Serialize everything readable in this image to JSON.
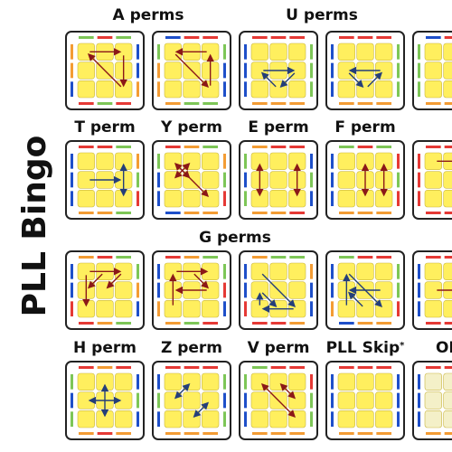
{
  "title": "PLL Bingo",
  "colors": {
    "sticker": "#FFEF5E",
    "sticker_border": "#C9B640",
    "frame": "#222222",
    "red": "#E53935",
    "orange": "#F39C34",
    "green": "#7DC657",
    "blue": "#1E4FC9",
    "arrow_red": "#8B1818",
    "arrow_blue": "#243E7A"
  },
  "rows": [
    {
      "groups": [
        {
          "label": "A perms",
          "span": [
            0,
            1
          ]
        },
        {
          "label": "U perms",
          "span": [
            2,
            3
          ]
        }
      ],
      "cells": [
        {
          "name": "aa",
          "color": "arrow_red",
          "sides": {
            "top": [
              "green",
              "red",
              "green"
            ],
            "left": [
              "orange",
              "orange",
              "blue"
            ],
            "right": [
              "blue",
              "blue",
              "orange"
            ],
            "bottom": [
              "red",
              "green",
              "red"
            ]
          },
          "arrows": [
            [
              0,
              0,
              2,
              0
            ],
            [
              2,
              0,
              2,
              2
            ],
            [
              2,
              2,
              0,
              0
            ]
          ]
        },
        {
          "name": "ab",
          "color": "arrow_red",
          "sides": {
            "top": [
              "blue",
              "red",
              "red"
            ],
            "left": [
              "green",
              "orange",
              "orange"
            ],
            "right": [
              "green",
              "blue",
              "blue"
            ],
            "bottom": [
              "orange",
              "green",
              "green"
            ]
          },
          "arrows": [
            [
              2,
              0,
              0,
              0
            ],
            [
              0,
              0,
              2,
              2
            ],
            [
              2,
              2,
              2,
              0
            ]
          ]
        },
        {
          "name": "ua",
          "color": "arrow_blue",
          "sides": {
            "top": [
              "red",
              "red",
              "red"
            ],
            "left": [
              "blue",
              "blue",
              "blue"
            ],
            "right": [
              "green",
              "green",
              "green"
            ],
            "bottom": [
              "orange",
              "orange",
              "orange"
            ]
          },
          "arrows": [
            [
              0,
              1,
              2,
              1
            ],
            [
              2,
              1,
              1,
              2
            ],
            [
              1,
              2,
              0,
              1
            ]
          ]
        },
        {
          "name": "ub",
          "color": "arrow_blue",
          "sides": {
            "top": [
              "red",
              "red",
              "red"
            ],
            "left": [
              "blue",
              "blue",
              "blue"
            ],
            "right": [
              "green",
              "green",
              "green"
            ],
            "bottom": [
              "orange",
              "orange",
              "orange"
            ]
          },
          "arrows": [
            [
              2,
              1,
              0,
              1
            ],
            [
              0,
              1,
              1,
              2
            ],
            [
              1,
              2,
              2,
              1
            ]
          ]
        },
        {
          "name": "edge",
          "color": "arrow_blue",
          "sides": {
            "top": [
              "blue",
              "red",
              "red"
            ],
            "left": [
              "green",
              "green",
              "green"
            ],
            "right": [
              "red",
              "red",
              "red"
            ],
            "bottom": [
              "orange",
              "orange",
              "orange"
            ]
          },
          "arrows": []
        }
      ]
    },
    {
      "groups": [
        {
          "label": "T perm",
          "span": [
            0,
            0
          ]
        },
        {
          "label": "Y perm",
          "span": [
            1,
            1
          ]
        },
        {
          "label": "E perm",
          "span": [
            2,
            2
          ]
        },
        {
          "label": "F perm",
          "span": [
            3,
            3
          ]
        }
      ],
      "cells": [
        {
          "name": "t",
          "color": "arrow_blue",
          "sides": {
            "top": [
              "red",
              "red",
              "green"
            ],
            "left": [
              "blue",
              "blue",
              "blue"
            ],
            "right": [
              "orange",
              "green",
              "red"
            ],
            "bottom": [
              "orange",
              "orange",
              "green"
            ]
          },
          "arrows": [
            [
              0,
              1,
              2,
              1
            ],
            [
              2,
              0,
              2,
              2
            ]
          ],
          "double": [
            1
          ]
        },
        {
          "name": "y",
          "color": "arrow_red",
          "sides": {
            "top": [
              "red",
              "orange",
              "green"
            ],
            "left": [
              "green",
              "blue",
              "blue"
            ],
            "right": [
              "orange",
              "green",
              "red"
            ],
            "bottom": [
              "blue",
              "orange",
              "orange"
            ]
          },
          "arrows": [
            [
              0,
              0,
              1,
              1
            ],
            [
              1,
              0,
              0,
              1
            ],
            [
              0,
              0,
              2,
              2
            ]
          ],
          "double": [
            1,
            2
          ]
        },
        {
          "name": "e",
          "color": "arrow_red",
          "sides": {
            "top": [
              "orange",
              "red",
              "red"
            ],
            "left": [
              "green",
              "blue",
              "green"
            ],
            "right": [
              "blue",
              "green",
              "blue"
            ],
            "bottom": [
              "orange",
              "orange",
              "red"
            ]
          },
          "arrows": [
            [
              0,
              0,
              0,
              2
            ],
            [
              2,
              0,
              2,
              2
            ]
          ],
          "double": [
            0,
            1
          ]
        },
        {
          "name": "f",
          "color": "arrow_red",
          "sides": {
            "top": [
              "green",
              "red",
              "green"
            ],
            "left": [
              "blue",
              "blue",
              "blue"
            ],
            "right": [
              "red",
              "green",
              "red"
            ],
            "bottom": [
              "orange",
              "orange",
              "orange"
            ]
          },
          "arrows": [
            [
              1,
              0,
              1,
              2
            ],
            [
              2,
              0,
              2,
              2
            ]
          ],
          "double": [
            0,
            1
          ]
        },
        {
          "name": "edge2",
          "color": "arrow_red",
          "sides": {
            "top": [
              "red",
              "red",
              "red"
            ],
            "left": [
              "red",
              "red",
              "red"
            ],
            "right": [
              "red",
              "red",
              "red"
            ],
            "bottom": [
              "red",
              "red",
              "red"
            ]
          },
          "arrows": [
            [
              0,
              0,
              2,
              0
            ]
          ]
        }
      ]
    },
    {
      "groups": [
        {
          "label": "G perms",
          "span": [
            0,
            3
          ]
        }
      ],
      "cells": [
        {
          "name": "ga",
          "color": "arrow_red",
          "sides": {
            "top": [
              "orange",
              "red",
              "green"
            ],
            "left": [
              "blue",
              "blue",
              "red"
            ],
            "right": [
              "green",
              "orange",
              "blue"
            ],
            "bottom": [
              "red",
              "orange",
              "green"
            ]
          },
          "arrows": [
            [
              0,
              0,
              0,
              2
            ],
            [
              0,
              0,
              2,
              0
            ],
            [
              2,
              0,
              1,
              1
            ],
            [
              1,
              0,
              0,
              1
            ]
          ]
        },
        {
          "name": "gb",
          "color": "arrow_red",
          "sides": {
            "top": [
              "red",
              "orange",
              "green"
            ],
            "left": [
              "blue",
              "blue",
              "orange"
            ],
            "right": [
              "green",
              "red",
              "blue"
            ],
            "bottom": [
              "orange",
              "green",
              "red"
            ]
          },
          "arrows": [
            [
              0,
              2,
              0,
              0
            ],
            [
              0,
              0,
              2,
              0
            ],
            [
              1,
              0,
              2,
              1
            ],
            [
              2,
              1,
              0,
              1
            ]
          ]
        },
        {
          "name": "gc",
          "color": "arrow_blue",
          "sides": {
            "top": [
              "orange",
              "green",
              "green"
            ],
            "left": [
              "blue",
              "blue",
              "red"
            ],
            "right": [
              "orange",
              "blue",
              "blue"
            ],
            "bottom": [
              "red",
              "red",
              "orange"
            ]
          },
          "arrows": [
            [
              0,
              0,
              2,
              2
            ],
            [
              2,
              2,
              0,
              2
            ],
            [
              0,
              1,
              1,
              2
            ],
            [
              0,
              2,
              0,
              1
            ]
          ]
        },
        {
          "name": "gd",
          "color": "arrow_blue",
          "sides": {
            "top": [
              "green",
              "red",
              "red"
            ],
            "left": [
              "blue",
              "blue",
              "orange"
            ],
            "right": [
              "green",
              "green",
              "red"
            ],
            "bottom": [
              "blue",
              "orange",
              "orange"
            ]
          },
          "arrows": [
            [
              0,
              0,
              2,
              2
            ],
            [
              0,
              2,
              0,
              0
            ],
            [
              1,
              2,
              0,
              1
            ],
            [
              2,
              1,
              0,
              1
            ]
          ]
        },
        {
          "name": "edge3",
          "color": "arrow_red",
          "sides": {
            "top": [
              "red",
              "red",
              "red"
            ],
            "left": [
              "blue",
              "blue",
              "blue"
            ],
            "right": [
              "red",
              "red",
              "red"
            ],
            "bottom": [
              "red",
              "red",
              "red"
            ]
          },
          "arrows": [
            [
              0,
              1,
              2,
              1
            ]
          ]
        }
      ]
    },
    {
      "groups": [
        {
          "label": "H perm",
          "span": [
            0,
            0
          ]
        },
        {
          "label": "Z perm",
          "span": [
            1,
            1
          ]
        },
        {
          "label": "V perm",
          "span": [
            2,
            2
          ]
        },
        {
          "label": "PLL Skip",
          "span": [
            3,
            3
          ],
          "sup": "*"
        },
        {
          "label": "OLL",
          "span": [
            4,
            4
          ]
        }
      ],
      "cells": [
        {
          "name": "h",
          "color": "arrow_blue",
          "sides": {
            "top": [
              "red",
              "orange",
              "red"
            ],
            "left": [
              "green",
              "blue",
              "green"
            ],
            "right": [
              "blue",
              "green",
              "blue"
            ],
            "bottom": [
              "orange",
              "red",
              "orange"
            ]
          },
          "arrows": [
            [
              0,
              1,
              2,
              1
            ],
            [
              1,
              0,
              1,
              2
            ]
          ],
          "double": [
            0,
            1
          ]
        },
        {
          "name": "z",
          "color": "arrow_blue",
          "sides": {
            "top": [
              "red",
              "red",
              "red"
            ],
            "left": [
              "blue",
              "green",
              "blue"
            ],
            "right": [
              "green",
              "blue",
              "green"
            ],
            "bottom": [
              "orange",
              "orange",
              "orange"
            ]
          },
          "arrows": [
            [
              0,
              1,
              1,
              0
            ],
            [
              1,
              2,
              2,
              1
            ]
          ],
          "double": [
            0,
            1
          ]
        },
        {
          "name": "v",
          "color": "arrow_red",
          "sides": {
            "top": [
              "green",
              "red",
              "red"
            ],
            "left": [
              "green",
              "blue",
              "blue"
            ],
            "right": [
              "red",
              "green",
              "green"
            ],
            "bottom": [
              "orange",
              "orange",
              "orange"
            ]
          },
          "arrows": [
            [
              0,
              0,
              2,
              2
            ],
            [
              1,
              0,
              2,
              1
            ]
          ],
          "double": [
            0,
            1
          ]
        },
        {
          "name": "skip",
          "color": "arrow_red",
          "sides": {
            "top": [
              "red",
              "red",
              "red"
            ],
            "left": [
              "blue",
              "blue",
              "blue"
            ],
            "right": [
              "blue",
              "blue",
              "blue"
            ],
            "bottom": [
              "orange",
              "orange",
              "orange"
            ]
          },
          "arrows": []
        },
        {
          "name": "oll",
          "color": "arrow_red",
          "sides": {
            "top": [
              "red",
              "red",
              "red"
            ],
            "left": [
              "blue",
              "blue",
              "blue"
            ],
            "right": [
              "green",
              "green",
              "green"
            ],
            "bottom": [
              "orange",
              "orange",
              "orange"
            ]
          },
          "arrows": [],
          "blank": true
        }
      ]
    }
  ]
}
